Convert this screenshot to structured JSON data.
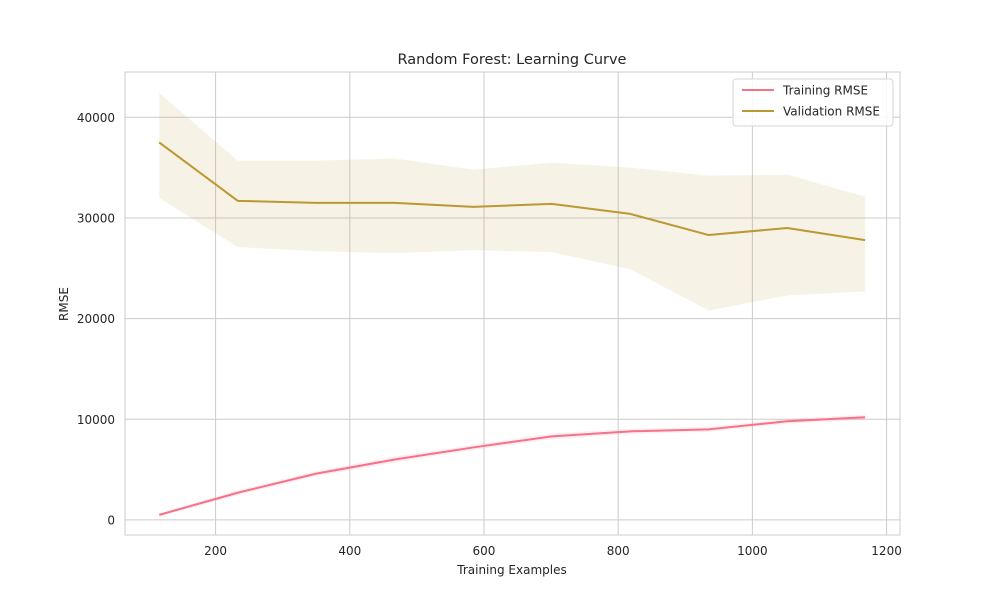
{
  "chart_data": {
    "type": "line",
    "title": "Random Forest: Learning Curve",
    "xlabel": "Training Examples",
    "ylabel": "RMSE",
    "xlim": [
      65,
      1220
    ],
    "ylim": [
      -1500,
      44500
    ],
    "xticks": [
      200,
      400,
      600,
      800,
      1000,
      1200
    ],
    "yticks": [
      0,
      10000,
      20000,
      30000,
      40000
    ],
    "grid": true,
    "legend_position": "top-right",
    "x": [
      116,
      233,
      350,
      467,
      584,
      701,
      818,
      935,
      1052,
      1168
    ],
    "series": [
      {
        "name": "Training RMSE",
        "color": "#f77189",
        "values": [
          500,
          2700,
          4600,
          6000,
          7200,
          8300,
          8800,
          9000,
          9800,
          10200
        ],
        "band_lower": [
          350,
          2450,
          4350,
          5700,
          6950,
          8000,
          8550,
          8750,
          9550,
          9950
        ],
        "band_upper": [
          650,
          2950,
          4850,
          6300,
          7450,
          8600,
          9050,
          9250,
          10050,
          10450
        ]
      },
      {
        "name": "Validation RMSE",
        "color": "#bb9832",
        "values": [
          37500,
          31700,
          31500,
          31500,
          31100,
          31400,
          30400,
          28300,
          29000,
          27800
        ],
        "band_lower": [
          32000,
          27100,
          26700,
          26500,
          26800,
          26600,
          24900,
          20800,
          22300,
          22700
        ],
        "band_upper": [
          42400,
          35700,
          35700,
          35900,
          34800,
          35500,
          35000,
          34200,
          34300,
          32100
        ]
      }
    ]
  }
}
